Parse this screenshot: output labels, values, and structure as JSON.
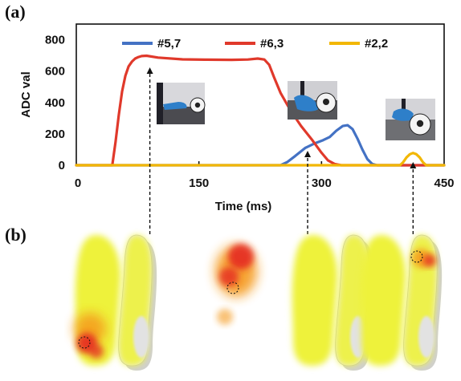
{
  "panels": {
    "a": "(a)",
    "b": "(b)"
  },
  "chart_data": {
    "type": "line",
    "title": "",
    "xlabel": "Time (ms)",
    "ylabel": "ADC val",
    "xlim": [
      0,
      450
    ],
    "ylim": [
      0,
      900
    ],
    "xticks": [
      0,
      150,
      300,
      450
    ],
    "yticks": [
      0,
      200,
      400,
      600,
      800
    ],
    "grid": false,
    "legend": "top",
    "series": [
      {
        "name": "#5,7",
        "color": "#4472C4",
        "x": [
          0,
          250,
          258,
          268,
          280,
          292,
          302,
          310,
          318,
          326,
          332,
          338,
          344,
          350,
          356,
          362,
          368,
          450
        ],
        "y": [
          0,
          0,
          20,
          60,
          110,
          140,
          160,
          180,
          220,
          250,
          255,
          230,
          170,
          100,
          40,
          8,
          0,
          0
        ]
      },
      {
        "name": "#6,3",
        "color": "#E0392B",
        "x": [
          0,
          44,
          48,
          52,
          56,
          60,
          64,
          68,
          72,
          76,
          80,
          86,
          100,
          130,
          160,
          190,
          210,
          222,
          230,
          236,
          242,
          250,
          262,
          275,
          288,
          300,
          308,
          316,
          324,
          450
        ],
        "y": [
          0,
          0,
          150,
          320,
          470,
          570,
          630,
          660,
          680,
          690,
          696,
          698,
          686,
          675,
          673,
          672,
          674,
          680,
          674,
          640,
          560,
          460,
          350,
          250,
          165,
          80,
          30,
          8,
          0,
          0
        ]
      },
      {
        "name": "#2,2",
        "color": "#F2B705",
        "x": [
          0,
          396,
          400,
          404,
          408,
          412,
          416,
          420,
          424,
          428,
          450
        ],
        "y": [
          0,
          0,
          20,
          50,
          70,
          78,
          70,
          50,
          20,
          0,
          0
        ]
      }
    ],
    "markers_x": [
      90,
      283,
      412
    ]
  },
  "photos": [
    {
      "name": "foot-near-ball-photo",
      "x_ms": 110
    },
    {
      "name": "foot-on-ball-photo",
      "x_ms": 283
    },
    {
      "name": "foot-toe-ball-photo",
      "x_ms": 412
    }
  ],
  "colors": {
    "pressure_yellow": "#EEF23A",
    "pressure_orange": "#F59A1C",
    "pressure_red": "#E52A22",
    "insole_shadow": "#CFCFCF"
  }
}
